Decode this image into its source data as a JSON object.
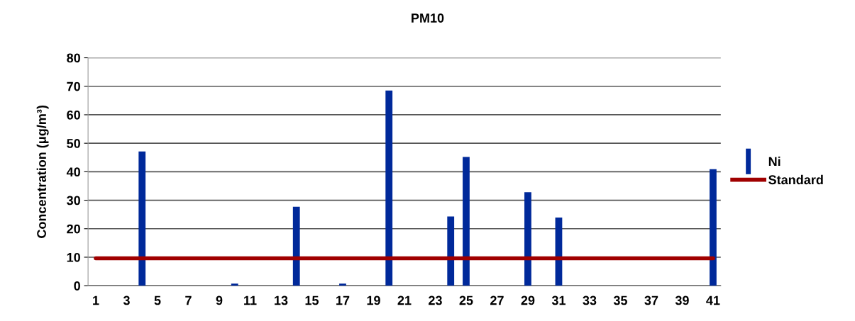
{
  "chart_data": {
    "type": "bar",
    "title": "PM10",
    "ylabel": "Concentration (μg/m³)",
    "categories": [
      "1",
      null,
      "3",
      null,
      "5",
      null,
      "7",
      null,
      "9",
      null,
      "11",
      null,
      "13",
      null,
      "15",
      null,
      "17",
      null,
      "19",
      null,
      "21",
      null,
      "23",
      null,
      "25",
      null,
      "27",
      null,
      "29",
      null,
      "31",
      null,
      "33",
      null,
      "35",
      null,
      "37",
      null,
      "39",
      null,
      "41"
    ],
    "series": [
      {
        "name": "Ni",
        "color": "#00299a",
        "values": [
          0,
          0,
          0,
          47.1,
          0,
          0,
          0,
          0,
          0,
          0.7,
          0,
          0,
          0,
          27.7,
          0,
          0,
          0.7,
          0,
          0,
          68.5,
          0,
          0,
          0,
          24.3,
          45.2,
          0,
          0,
          0,
          32.8,
          0,
          23.9,
          0,
          0,
          0,
          0,
          0,
          0,
          0,
          0,
          0,
          40.9
        ]
      },
      {
        "name": "Standard",
        "type": "line",
        "color": "#a00000",
        "values": [
          9.6,
          9.6,
          9.6,
          9.6,
          9.6,
          9.6,
          9.6,
          9.6,
          9.6,
          9.6,
          9.6,
          9.6,
          9.6,
          9.6,
          9.6,
          9.6,
          9.6,
          9.6,
          9.6,
          9.6,
          9.6,
          9.6,
          9.6,
          9.6,
          9.6,
          9.6,
          9.6,
          9.6,
          9.6,
          9.6,
          9.6,
          9.6,
          9.6,
          9.6,
          9.6,
          9.6,
          9.6,
          9.6,
          9.6,
          9.6,
          9.6
        ]
      }
    ],
    "ylim": [
      0,
      80
    ],
    "yticks": [
      0,
      10,
      20,
      30,
      40,
      50,
      60,
      70,
      80
    ],
    "grid": "y",
    "legend": "right"
  }
}
